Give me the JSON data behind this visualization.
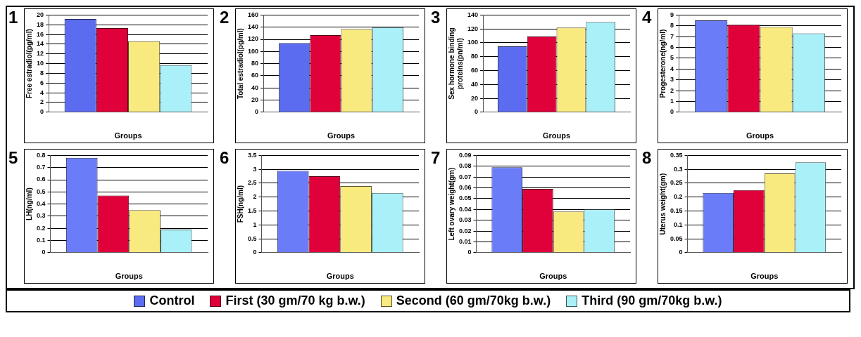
{
  "chart_data": [
    {
      "type": "bar",
      "title": "1",
      "xlabel": "Groups",
      "ylabel": "Free estradiol(pg/ml)",
      "categories": [
        null
      ],
      "grid": "y",
      "legend": "bottom",
      "ylim": [
        0,
        20
      ],
      "yticks": [
        0,
        2,
        4,
        6,
        8,
        10,
        12,
        14,
        16,
        18,
        20
      ],
      "series": [
        {
          "name": "Control",
          "color": "#5b6cf0",
          "values": [
            19.2
          ]
        },
        {
          "name": "First (30 gm/70 kg b.w.)",
          "color": "#e0003a",
          "values": [
            17.3
          ]
        },
        {
          "name": "Second (60 gm/70kg b.w.)",
          "color": "#f9ea80",
          "values": [
            14.6
          ]
        },
        {
          "name": "Third (90 gm/70kg b.w.)",
          "color": "#aaf0f8",
          "values": [
            9.7
          ]
        }
      ]
    },
    {
      "type": "bar",
      "title": "2",
      "xlabel": "Groups",
      "ylabel": "Total estradiol(pg/ml)",
      "categories": [
        null
      ],
      "grid": "y",
      "ylim": [
        0,
        160
      ],
      "yticks": [
        0,
        20,
        40,
        60,
        80,
        100,
        120,
        140,
        160
      ],
      "series": [
        {
          "color": "#5b6cf0",
          "values": [
            114
          ]
        },
        {
          "color": "#e0003a",
          "values": [
            127
          ]
        },
        {
          "color": "#f9ea80",
          "values": [
            137
          ]
        },
        {
          "color": "#aaf0f8",
          "values": [
            140
          ]
        }
      ]
    },
    {
      "type": "bar",
      "title": "3",
      "xlabel": "Groups",
      "ylabel": "Sex hormone binding proteins(pn/ml)",
      "categories": [
        null
      ],
      "grid": "y",
      "ylim": [
        0,
        140
      ],
      "yticks": [
        0,
        20,
        40,
        60,
        80,
        100,
        120,
        140
      ],
      "series": [
        {
          "color": "#5b6cf0",
          "values": [
            95
          ]
        },
        {
          "color": "#e0003a",
          "values": [
            109
          ]
        },
        {
          "color": "#f9ea80",
          "values": [
            122
          ]
        },
        {
          "color": "#aaf0f8",
          "values": [
            130
          ]
        }
      ]
    },
    {
      "type": "bar",
      "title": "4",
      "xlabel": "Groups",
      "ylabel": "Progesterone(ng/ml)",
      "categories": [
        null
      ],
      "grid": "y",
      "ylim": [
        0,
        9
      ],
      "yticks": [
        0,
        1,
        2,
        3,
        4,
        5,
        6,
        7,
        8,
        9
      ],
      "series": [
        {
          "color": "#6b7cf8",
          "values": [
            8.5
          ]
        },
        {
          "color": "#e0003a",
          "values": [
            8.1
          ]
        },
        {
          "color": "#f9ea80",
          "values": [
            7.9
          ]
        },
        {
          "color": "#aaf0f8",
          "values": [
            7.3
          ]
        }
      ]
    },
    {
      "type": "bar",
      "title": "5",
      "xlabel": "Groups",
      "ylabel": "LH(ng/ml)",
      "categories": [
        null
      ],
      "grid": "y",
      "ylim": [
        0,
        0.8
      ],
      "yticks": [
        0,
        0.1,
        0.2,
        0.3,
        0.4,
        0.5,
        0.6,
        0.7,
        0.8
      ],
      "series": [
        {
          "color": "#6b7cf8",
          "values": [
            0.78
          ]
        },
        {
          "color": "#e0003a",
          "values": [
            0.47
          ]
        },
        {
          "color": "#f9ea80",
          "values": [
            0.35
          ]
        },
        {
          "color": "#aaf0f8",
          "values": [
            0.19
          ]
        }
      ]
    },
    {
      "type": "bar",
      "title": "6",
      "xlabel": "Groups",
      "ylabel": "FSH(ng/ml)",
      "categories": [
        null
      ],
      "grid": "y",
      "ylim": [
        0,
        3.5
      ],
      "yticks": [
        0,
        0.5,
        1,
        1.5,
        2,
        2.5,
        3,
        3.5
      ],
      "series": [
        {
          "color": "#6b7cf8",
          "values": [
            2.95
          ]
        },
        {
          "color": "#e0003a",
          "values": [
            2.75
          ]
        },
        {
          "color": "#f9ea80",
          "values": [
            2.4
          ]
        },
        {
          "color": "#aaf0f8",
          "values": [
            2.15
          ]
        }
      ]
    },
    {
      "type": "bar",
      "title": "7",
      "xlabel": "Groups",
      "ylabel": "Left ovary weight(gm)",
      "categories": [
        null
      ],
      "grid": "y",
      "ylim": [
        0,
        0.09
      ],
      "yticks": [
        0,
        0.01,
        0.02,
        0.03,
        0.04,
        0.05,
        0.06,
        0.07,
        0.08,
        0.09
      ],
      "series": [
        {
          "color": "#6b7cf8",
          "values": [
            0.079
          ]
        },
        {
          "color": "#e0003a",
          "values": [
            0.059
          ]
        },
        {
          "color": "#f9ea80",
          "values": [
            0.038
          ]
        },
        {
          "color": "#aaf0f8",
          "values": [
            0.04
          ]
        }
      ]
    },
    {
      "type": "bar",
      "title": "8",
      "xlabel": "Groups",
      "ylabel": "Uterus weight(gm)",
      "categories": [
        null
      ],
      "grid": "y",
      "ylim": [
        0,
        0.35
      ],
      "yticks": [
        0,
        0.05,
        0.1,
        0.15,
        0.2,
        0.25,
        0.3,
        0.35
      ],
      "series": [
        {
          "color": "#6b7cf8",
          "values": [
            0.215
          ]
        },
        {
          "color": "#e0003a",
          "values": [
            0.225
          ]
        },
        {
          "color": "#f9ea80",
          "values": [
            0.285
          ]
        },
        {
          "color": "#aaf0f8",
          "values": [
            0.325
          ]
        }
      ]
    }
  ]
}
